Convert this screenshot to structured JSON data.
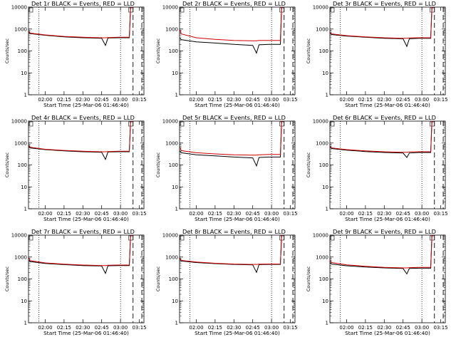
{
  "figure": {
    "xlabel": "Start Time (25-Mar-06 01:46:40)",
    "ylabel": "Counts/sec"
  },
  "chart_data": [
    {
      "type": "line",
      "title": "Det 1r BLACK = Events, RED = LLD",
      "xlabel": "Start Time (25-Mar-06 01:46:40)",
      "ylabel": "Counts/sec",
      "yscale": "log",
      "ylim": [
        1,
        10000
      ],
      "xlim_minutes": [
        0,
        92
      ],
      "x_tick_labels": [
        "02:00",
        "02:15",
        "02:30",
        "02:45",
        "03:00",
        "03:15"
      ],
      "y_tick_labels": [
        "1",
        "10",
        "100",
        "1000",
        "10000"
      ],
      "dotted_vlines": [
        "01:55",
        "03:00"
      ],
      "dashed_vlines": [
        "03:10",
        "03:17"
      ],
      "series": [
        {
          "name": "Events",
          "color": "#000000",
          "x": [
            "01:47",
            "01:48",
            "02:00",
            "02:15",
            "02:30",
            "02:45",
            "02:48",
            "02:50",
            "02:58",
            "03:07",
            "03:08",
            "03:09"
          ],
          "y": [
            700,
            620,
            520,
            440,
            400,
            380,
            180,
            390,
            400,
            400,
            9000,
            10000
          ]
        },
        {
          "name": "LLD",
          "color": "#cc0000",
          "x": [
            "01:47",
            "01:48",
            "02:00",
            "02:15",
            "02:30",
            "02:45",
            "02:48",
            "02:50",
            "02:58",
            "03:07",
            "03:08",
            "03:09"
          ],
          "y": [
            800,
            650,
            540,
            460,
            420,
            400,
            400,
            410,
            420,
            420,
            9000,
            10000
          ]
        }
      ]
    },
    {
      "type": "line",
      "title": "Det 2r BLACK = Events, RED = LLD",
      "xlabel": "Start Time (25-Mar-06 01:46:40)",
      "ylabel": "Counts/sec",
      "yscale": "log",
      "ylim": [
        1,
        10000
      ],
      "xlim_minutes": [
        0,
        92
      ],
      "x_tick_labels": [
        "02:00",
        "02:15",
        "02:30",
        "02:45",
        "03:00",
        "03:15"
      ],
      "y_tick_labels": [
        "1",
        "10",
        "100",
        "1000",
        "10000"
      ],
      "dotted_vlines": [
        "01:55",
        "03:00"
      ],
      "dashed_vlines": [
        "03:10",
        "03:17"
      ],
      "series": [
        {
          "name": "Events",
          "color": "#000000",
          "x": [
            "01:47",
            "01:48",
            "02:00",
            "02:15",
            "02:30",
            "02:45",
            "02:48",
            "02:50",
            "02:58",
            "03:07",
            "03:08",
            "03:09"
          ],
          "y": [
            380,
            330,
            260,
            230,
            200,
            180,
            80,
            190,
            200,
            200,
            9000,
            10000
          ]
        },
        {
          "name": "LLD",
          "color": "#cc0000",
          "x": [
            "01:47",
            "01:48",
            "02:00",
            "02:15",
            "02:30",
            "02:45",
            "02:48",
            "02:50",
            "02:58",
            "03:07",
            "03:08",
            "03:09"
          ],
          "y": [
            900,
            600,
            400,
            340,
            300,
            290,
            290,
            300,
            300,
            300,
            9000,
            10000
          ]
        }
      ]
    },
    {
      "type": "line",
      "title": "Det 3r BLACK = Events, RED = LLD",
      "xlabel": "Start Time (25-Mar-06 01:46:40)",
      "ylabel": "Counts/sec",
      "yscale": "log",
      "ylim": [
        1,
        10000
      ],
      "xlim_minutes": [
        0,
        92
      ],
      "x_tick_labels": [
        "02:00",
        "02:15",
        "02:30",
        "02:45",
        "03:00",
        "03:15"
      ],
      "y_tick_labels": [
        "1",
        "10",
        "100",
        "1000",
        "10000"
      ],
      "dotted_vlines": [
        "01:55",
        "03:00"
      ],
      "dashed_vlines": [
        "03:10",
        "03:17"
      ],
      "series": [
        {
          "name": "Events",
          "color": "#000000",
          "x": [
            "01:47",
            "01:48",
            "02:00",
            "02:15",
            "02:30",
            "02:45",
            "02:48",
            "02:50",
            "02:58",
            "03:07",
            "03:08",
            "03:09"
          ],
          "y": [
            620,
            560,
            480,
            420,
            380,
            360,
            160,
            360,
            380,
            380,
            9000,
            10000
          ]
        },
        {
          "name": "LLD",
          "color": "#cc0000",
          "x": [
            "01:47",
            "01:48",
            "02:00",
            "02:15",
            "02:30",
            "02:45",
            "02:48",
            "02:50",
            "02:58",
            "03:07",
            "03:08",
            "03:09"
          ],
          "y": [
            700,
            600,
            500,
            440,
            400,
            380,
            380,
            390,
            400,
            400,
            9000,
            10000
          ]
        }
      ]
    },
    {
      "type": "line",
      "title": "Det 4r BLACK = Events, RED = LLD",
      "xlabel": "Start Time (25-Mar-06 01:46:40)",
      "ylabel": "Counts/sec",
      "yscale": "log",
      "ylim": [
        1,
        10000
      ],
      "xlim_minutes": [
        0,
        92
      ],
      "x_tick_labels": [
        "02:00",
        "02:15",
        "02:30",
        "02:45",
        "03:00",
        "03:15"
      ],
      "y_tick_labels": [
        "1",
        "10",
        "100",
        "1000",
        "10000"
      ],
      "dotted_vlines": [
        "01:55",
        "03:00"
      ],
      "dashed_vlines": [
        "03:10",
        "03:17"
      ],
      "series": [
        {
          "name": "Events",
          "color": "#000000",
          "x": [
            "01:47",
            "01:48",
            "02:00",
            "02:15",
            "02:30",
            "02:45",
            "02:48",
            "02:50",
            "02:58",
            "03:07",
            "03:08",
            "03:09"
          ],
          "y": [
            700,
            600,
            500,
            440,
            400,
            380,
            180,
            390,
            400,
            400,
            9000,
            10000
          ]
        },
        {
          "name": "LLD",
          "color": "#cc0000",
          "x": [
            "01:47",
            "01:48",
            "02:00",
            "02:15",
            "02:30",
            "02:45",
            "02:48",
            "02:50",
            "02:58",
            "03:07",
            "03:08",
            "03:09"
          ],
          "y": [
            800,
            640,
            520,
            460,
            420,
            400,
            400,
            410,
            420,
            420,
            9000,
            10000
          ]
        }
      ]
    },
    {
      "type": "line",
      "title": "Det 5r BLACK = Events, RED = LLD",
      "xlabel": "Start Time (25-Mar-06 01:46:40)",
      "ylabel": "Counts/sec",
      "yscale": "log",
      "ylim": [
        1,
        10000
      ],
      "xlim_minutes": [
        0,
        92
      ],
      "x_tick_labels": [
        "02:00",
        "02:15",
        "02:30",
        "02:45",
        "03:00",
        "03:15"
      ],
      "y_tick_labels": [
        "1",
        "10",
        "100",
        "1000",
        "10000"
      ],
      "dotted_vlines": [
        "01:55",
        "03:00"
      ],
      "dashed_vlines": [
        "03:10",
        "03:17"
      ],
      "series": [
        {
          "name": "Events",
          "color": "#000000",
          "x": [
            "01:47",
            "01:48",
            "02:00",
            "02:15",
            "02:30",
            "02:45",
            "02:48",
            "02:50",
            "02:58",
            "03:07",
            "03:08",
            "03:09"
          ],
          "y": [
            440,
            360,
            290,
            260,
            230,
            210,
            90,
            220,
            230,
            230,
            9000,
            10000
          ]
        },
        {
          "name": "LLD",
          "color": "#cc0000",
          "x": [
            "01:47",
            "01:48",
            "02:00",
            "02:15",
            "02:30",
            "02:45",
            "02:48",
            "02:50",
            "02:58",
            "03:07",
            "03:08",
            "03:09"
          ],
          "y": [
            650,
            450,
            360,
            320,
            290,
            280,
            280,
            290,
            300,
            300,
            9000,
            10000
          ]
        }
      ]
    },
    {
      "type": "line",
      "title": "Det 6r BLACK = Events, RED = LLD",
      "xlabel": "Start Time (25-Mar-06 01:46:40)",
      "ylabel": "Counts/sec",
      "yscale": "log",
      "ylim": [
        1,
        10000
      ],
      "xlim_minutes": [
        0,
        92
      ],
      "x_tick_labels": [
        "02:00",
        "02:15",
        "02:30",
        "02:45",
        "03:00",
        "03:15"
      ],
      "y_tick_labels": [
        "1",
        "10",
        "100",
        "1000",
        "10000"
      ],
      "dotted_vlines": [
        "01:55",
        "03:00"
      ],
      "dashed_vlines": [
        "03:10",
        "03:17"
      ],
      "series": [
        {
          "name": "Events",
          "color": "#000000",
          "x": [
            "01:47",
            "01:48",
            "02:00",
            "02:15",
            "02:30",
            "02:45",
            "02:48",
            "02:50",
            "02:58",
            "03:07",
            "03:08",
            "03:09"
          ],
          "y": [
            640,
            560,
            470,
            410,
            370,
            350,
            220,
            350,
            370,
            370,
            9000,
            10000
          ]
        },
        {
          "name": "LLD",
          "color": "#cc0000",
          "x": [
            "01:47",
            "01:48",
            "02:00",
            "02:15",
            "02:30",
            "02:45",
            "02:48",
            "02:50",
            "02:58",
            "03:07",
            "03:08",
            "03:09"
          ],
          "y": [
            720,
            600,
            500,
            440,
            400,
            380,
            380,
            390,
            400,
            400,
            9000,
            10000
          ]
        }
      ]
    },
    {
      "type": "line",
      "title": "Det 7r BLACK = Events, RED = LLD",
      "xlabel": "Start Time (25-Mar-06 01:46:40)",
      "ylabel": "Counts/sec",
      "yscale": "log",
      "ylim": [
        1,
        10000
      ],
      "xlim_minutes": [
        0,
        92
      ],
      "x_tick_labels": [
        "02:00",
        "02:15",
        "02:30",
        "02:45",
        "03:00",
        "03:15"
      ],
      "y_tick_labels": [
        "1",
        "10",
        "100",
        "1000",
        "10000"
      ],
      "dotted_vlines": [
        "01:55",
        "03:00"
      ],
      "dashed_vlines": [
        "03:10",
        "03:17"
      ],
      "series": [
        {
          "name": "Events",
          "color": "#000000",
          "x": [
            "01:47",
            "01:48",
            "02:00",
            "02:15",
            "02:30",
            "02:45",
            "02:48",
            "02:50",
            "02:58",
            "03:07",
            "03:08",
            "03:09"
          ],
          "y": [
            720,
            620,
            510,
            450,
            410,
            390,
            180,
            400,
            410,
            410,
            9000,
            10000
          ]
        },
        {
          "name": "LLD",
          "color": "#cc0000",
          "x": [
            "01:47",
            "01:48",
            "02:00",
            "02:15",
            "02:30",
            "02:45",
            "02:48",
            "02:50",
            "02:58",
            "03:07",
            "03:08",
            "03:09"
          ],
          "y": [
            900,
            680,
            540,
            470,
            430,
            410,
            410,
            420,
            430,
            430,
            9000,
            10000
          ]
        }
      ]
    },
    {
      "type": "line",
      "title": "Det 8r BLACK = Events, RED = LLD",
      "xlabel": "Start Time (25-Mar-06 01:46:40)",
      "ylabel": "Counts/sec",
      "yscale": "log",
      "ylim": [
        1,
        10000
      ],
      "xlim_minutes": [
        0,
        92
      ],
      "x_tick_labels": [
        "02:00",
        "02:15",
        "02:30",
        "02:45",
        "03:00",
        "03:15"
      ],
      "y_tick_labels": [
        "1",
        "10",
        "100",
        "1000",
        "10000"
      ],
      "dotted_vlines": [
        "01:55",
        "03:00"
      ],
      "dashed_vlines": [
        "03:10",
        "03:17"
      ],
      "series": [
        {
          "name": "Events",
          "color": "#000000",
          "x": [
            "01:47",
            "01:48",
            "02:00",
            "02:15",
            "02:30",
            "02:45",
            "02:48",
            "02:50",
            "02:58",
            "03:07",
            "03:08",
            "03:09"
          ],
          "y": [
            760,
            660,
            560,
            500,
            460,
            440,
            200,
            450,
            460,
            460,
            9000,
            10000
          ]
        },
        {
          "name": "LLD",
          "color": "#cc0000",
          "x": [
            "01:47",
            "01:48",
            "02:00",
            "02:15",
            "02:30",
            "02:45",
            "02:48",
            "02:50",
            "02:58",
            "03:07",
            "03:08",
            "03:09"
          ],
          "y": [
            900,
            700,
            590,
            520,
            480,
            460,
            460,
            470,
            480,
            480,
            9000,
            10000
          ]
        }
      ]
    },
    {
      "type": "line",
      "title": "Det 9r BLACK = Events, RED = LLD",
      "xlabel": "Start Time (25-Mar-06 01:46:40)",
      "ylabel": "Counts/sec",
      "yscale": "log",
      "ylim": [
        1,
        10000
      ],
      "xlim_minutes": [
        0,
        92
      ],
      "x_tick_labels": [
        "02:00",
        "02:15",
        "02:30",
        "02:45",
        "03:00",
        "03:15"
      ],
      "y_tick_labels": [
        "1",
        "10",
        "100",
        "1000",
        "10000"
      ],
      "dotted_vlines": [
        "01:55",
        "03:00"
      ],
      "dashed_vlines": [
        "03:10",
        "03:17"
      ],
      "series": [
        {
          "name": "Events",
          "color": "#000000",
          "x": [
            "01:47",
            "01:48",
            "02:00",
            "02:15",
            "02:30",
            "02:45",
            "02:48",
            "02:50",
            "02:58",
            "03:07",
            "03:08",
            "03:09"
          ],
          "y": [
            560,
            480,
            400,
            350,
            320,
            300,
            170,
            300,
            310,
            310,
            9000,
            10000
          ]
        },
        {
          "name": "LLD",
          "color": "#cc0000",
          "x": [
            "01:47",
            "01:48",
            "02:00",
            "02:15",
            "02:30",
            "02:45",
            "02:48",
            "02:50",
            "02:58",
            "03:07",
            "03:08",
            "03:09"
          ],
          "y": [
            700,
            560,
            440,
            380,
            340,
            320,
            320,
            330,
            340,
            340,
            9000,
            10000
          ]
        }
      ]
    }
  ]
}
